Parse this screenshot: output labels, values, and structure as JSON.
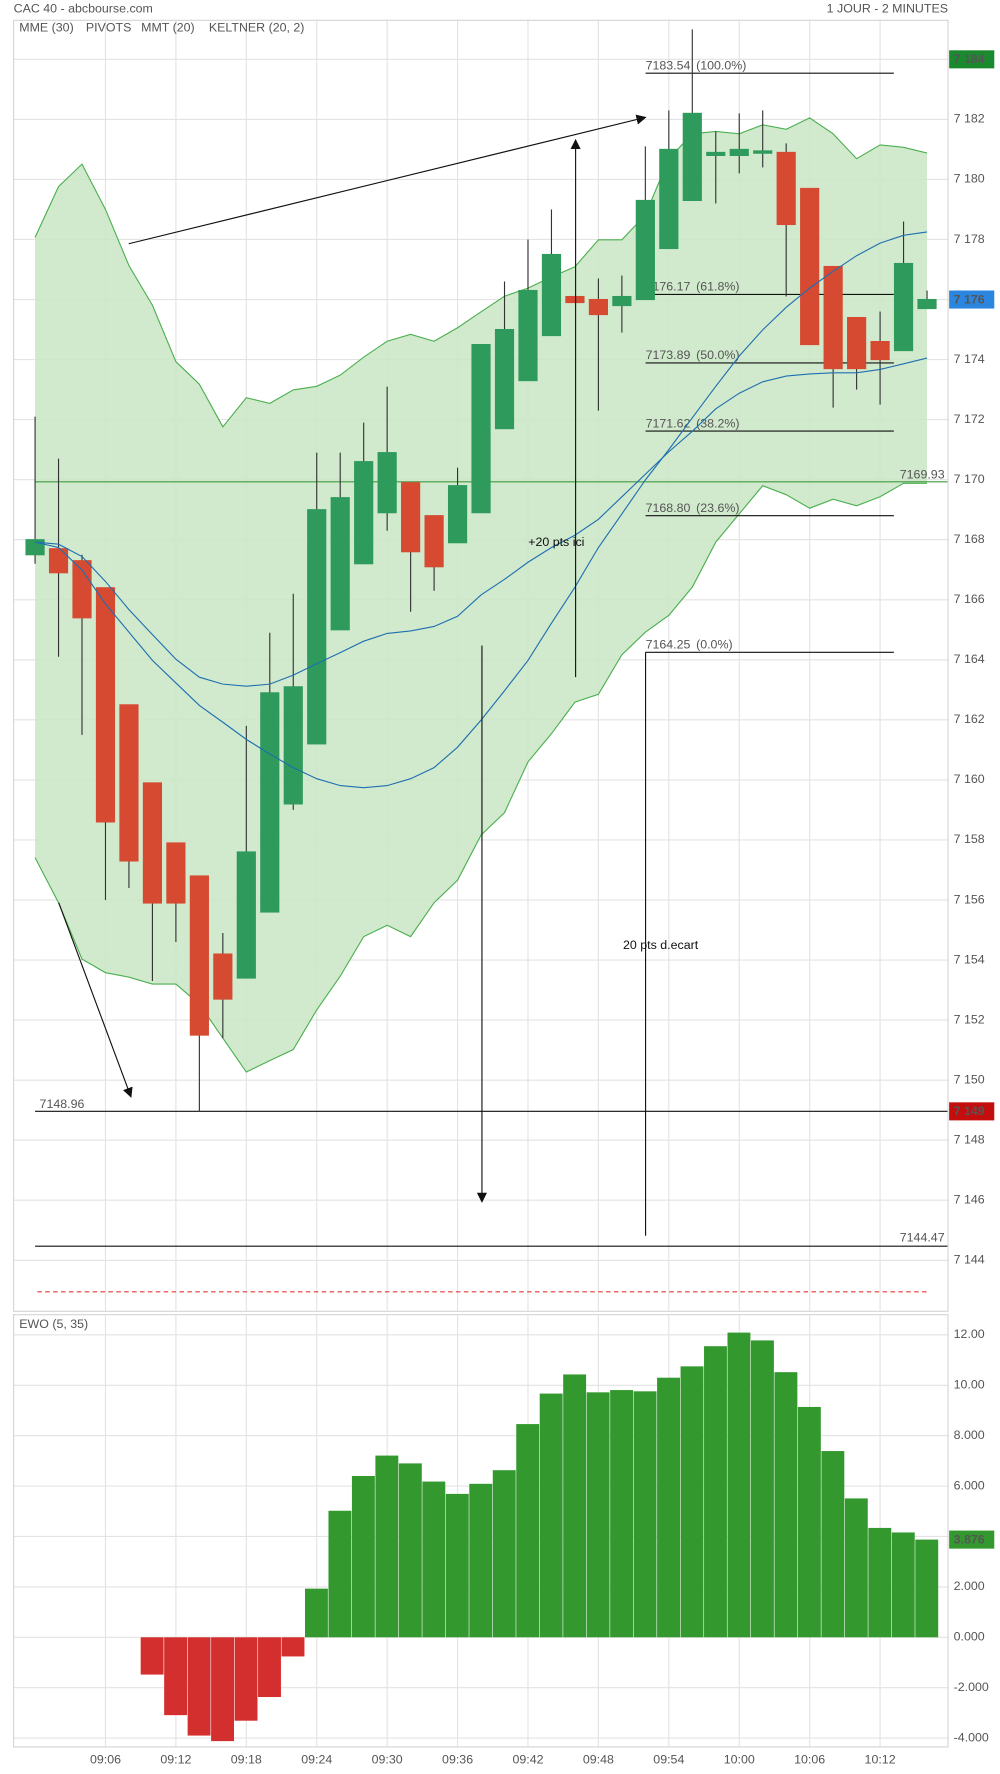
{
  "header": {
    "title": "CAC 40 - abcbourse.com",
    "timeframe": "1 JOUR - 2 MINUTES"
  },
  "annotations": [
    "+20 pts ici",
    "20 pts d.ecart"
  ],
  "chart_data": [
    {
      "type": "candlestick",
      "categories": [
        null,
        null,
        null,
        "09:06",
        null,
        null,
        "09:12",
        null,
        null,
        "09:18",
        null,
        null,
        "09:24",
        null,
        null,
        "09:30",
        null,
        null,
        "09:36",
        null,
        null,
        "09:42",
        null,
        null,
        "09:48",
        null,
        null,
        "09:54",
        null,
        null,
        "10:00",
        null,
        null,
        "10:06",
        null,
        null,
        "10:12",
        null,
        null
      ],
      "open": [
        7167.5,
        7167.7,
        7167.3,
        7166.4,
        7162.5,
        7159.9,
        7157.9,
        7156.8,
        7154.2,
        7153.4,
        7155.6,
        7159.2,
        7161.2,
        7165.0,
        7167.2,
        7168.9,
        7169.9,
        7168.8,
        7167.9,
        7168.9,
        7171.7,
        7173.3,
        7174.8,
        7176.1,
        7176.0,
        7175.8,
        7176.0,
        7177.7,
        7179.3,
        7180.8,
        7180.8,
        7180.9,
        7180.9,
        7179.7,
        7177.1,
        7175.4,
        7174.6,
        7174.3,
        7175.7
      ],
      "high": [
        7172.1,
        7170.7,
        7167.5,
        7166.4,
        7162.5,
        7159.9,
        7157.9,
        7156.8,
        7154.9,
        7161.8,
        7164.9,
        7166.2,
        7170.9,
        7170.9,
        7171.9,
        7173.1,
        7169.9,
        7168.8,
        7170.4,
        7174.5,
        7176.6,
        7178.0,
        7179.0,
        7176.1,
        7176.7,
        7176.8,
        7181.1,
        7182.3,
        7185.0,
        7181.6,
        7182.2,
        7182.3,
        7181.2,
        7179.7,
        7177.1,
        7175.4,
        7175.6,
        7178.6,
        7176.3
      ],
      "low": [
        7167.2,
        7164.1,
        7161.5,
        7156.0,
        7156.4,
        7153.3,
        7154.6,
        7148.96,
        7151.4,
        7153.4,
        7155.6,
        7159.0,
        7161.2,
        7165.0,
        7167.2,
        7168.3,
        7165.6,
        7166.3,
        7167.9,
        7168.9,
        7171.7,
        7173.3,
        7174.8,
        7175.9,
        7172.3,
        7174.9,
        7176.0,
        7177.7,
        7179.3,
        7179.2,
        7180.2,
        7180.4,
        7176.1,
        7174.5,
        7172.4,
        7173.0,
        7172.5,
        7174.3,
        7175.7
      ],
      "close": [
        7168.0,
        7166.9,
        7165.4,
        7158.6,
        7157.3,
        7155.9,
        7155.9,
        7151.5,
        7152.7,
        7157.6,
        7162.9,
        7163.1,
        7169.0,
        7169.4,
        7170.6,
        7170.9,
        7167.6,
        7167.1,
        7169.8,
        7174.5,
        7175.0,
        7176.3,
        7177.5,
        7175.9,
        7175.5,
        7176.1,
        7179.3,
        7181.0,
        7182.2,
        7180.9,
        7181.0,
        7180.95,
        7178.5,
        7174.5,
        7173.7,
        7173.7,
        7174.0,
        7177.2,
        7176.0
      ],
      "up_color": "#2e9a5c",
      "down_color": "#d64a32",
      "series": [
        {
          "name": "MME (30)",
          "color": "#1f6fb0",
          "values": [
            7167.92,
            7167.85,
            7167.44,
            7166.61,
            7165.67,
            7164.84,
            7164.02,
            7163.42,
            7163.19,
            7163.12,
            7163.19,
            7163.49,
            7163.87,
            7164.24,
            7164.62,
            7164.88,
            7164.96,
            7165.11,
            7165.45,
            7166.16,
            7166.68,
            7167.25,
            7167.74,
            7168.15,
            7168.68,
            7169.43,
            7170.18,
            7170.93,
            7171.61,
            7172.36,
            7172.88,
            7173.26,
            7173.45,
            7173.52,
            7173.56,
            7173.56,
            7173.67,
            7173.86,
            7174.05
          ]
        },
        {
          "name": "MMT (20)",
          "color": "#1f6fb0",
          "values": [
            7167.92,
            7167.74,
            7166.99,
            7165.86,
            7164.92,
            7163.98,
            7163.23,
            7162.48,
            7161.92,
            7161.35,
            7160.86,
            7160.41,
            7160.04,
            7159.81,
            7159.74,
            7159.81,
            7160.04,
            7160.41,
            7161.09,
            7161.99,
            7162.97,
            7163.98,
            7165.22,
            7166.42,
            7167.74,
            7168.86,
            7169.99,
            7171.0,
            7172.06,
            7173.11,
            7174.12,
            7174.99,
            7175.74,
            7176.38,
            7176.94,
            7177.46,
            7177.88,
            7178.14,
            7178.25
          ]
        }
      ],
      "pivots": {
        "name": "PIVOTS",
        "label_color": "#555555",
        "color": "#3f9a3f",
        "levels": [
          7169.93
        ]
      },
      "bands": {
        "name": "KELTNER (20, 2)",
        "color": "#4caf50",
        "fill": "#c9e6c4",
        "upper": [
          7178.07,
          7179.76,
          7180.51,
          7179.0,
          7177.13,
          7175.81,
          7173.93,
          7173.18,
          7171.76,
          7172.73,
          7172.54,
          7172.99,
          7173.11,
          7173.48,
          7174.08,
          7174.61,
          7174.84,
          7174.61,
          7175.06,
          7175.59,
          7176.11,
          7176.38,
          7176.75,
          7177.09,
          7177.99,
          7177.99,
          7178.82,
          7180.69,
          7181.52,
          7181.6,
          7181.52,
          7181.82,
          7181.67,
          7182.05,
          7181.52,
          7180.69,
          7181.15,
          7181.07,
          7180.88
        ],
        "lower": [
          7157.41,
          7155.91,
          7154.03,
          7153.58,
          7153.43,
          7153.2,
          7153.2,
          7152.53,
          7151.4,
          7150.27,
          7150.65,
          7151.02,
          7152.34,
          7153.46,
          7154.78,
          7155.16,
          7154.78,
          7155.91,
          7156.66,
          7158.16,
          7158.91,
          7160.6,
          7161.54,
          7162.59,
          7162.85,
          7164.17,
          7164.92,
          7165.48,
          7166.42,
          7167.92,
          7168.86,
          7169.8,
          7169.5,
          7169.05,
          7169.35,
          7169.13,
          7169.43,
          7169.88,
          7169.88
        ]
      },
      "hlines": [
        7148.96,
        7144.47
      ],
      "dashed_line": {
        "value": 7142.95,
        "color": "#e53935"
      },
      "fibonacci": [
        {
          "value": 7183.54,
          "ratio": "(100.0%)"
        },
        {
          "value": 7176.17,
          "ratio": "(61.8%)"
        },
        {
          "value": 7173.89,
          "ratio": "(50.0%)"
        },
        {
          "value": 7171.62,
          "ratio": "(38.2%)"
        },
        {
          "value": 7168.8,
          "label": "7168.80",
          "ratio": "(23.6%)"
        },
        {
          "value": 7164.25,
          "ratio": "(0.0%)"
        }
      ],
      "price_tags": [
        {
          "value": 7184,
          "label": "7 184",
          "color": "#1b8a2e"
        },
        {
          "value": 7176,
          "label": "7 176",
          "color": "#2b86e0"
        },
        {
          "value": 7148.96,
          "label": "7 149",
          "color": "#c40d0d"
        }
      ],
      "ylim": [
        7142.3,
        7185.3
      ],
      "yticks": [
        {
          "value": 7144,
          "label": "7 144"
        },
        {
          "value": 7146,
          "label": "7 146"
        },
        {
          "value": 7148,
          "label": "7 148"
        },
        {
          "value": 7150,
          "label": "7 150"
        },
        {
          "value": 7152,
          "label": "7 152"
        },
        {
          "value": 7154,
          "label": "7 154"
        },
        {
          "value": 7156,
          "label": "7 156"
        },
        {
          "value": 7158,
          "label": "7 158"
        },
        {
          "value": 7160,
          "label": "7 160"
        },
        {
          "value": 7162,
          "label": "7 162"
        },
        {
          "value": 7164,
          "label": "7 164"
        },
        {
          "value": 7166,
          "label": "7 166"
        },
        {
          "value": 7168,
          "label": "7 168"
        },
        {
          "value": 7170,
          "label": "7 170"
        },
        {
          "value": 7172,
          "label": "7 172"
        },
        {
          "value": 7174,
          "label": "7 174"
        },
        {
          "value": 7176,
          "label": "7 176"
        },
        {
          "value": 7178,
          "label": "7 178"
        },
        {
          "value": 7180,
          "label": "7 180"
        },
        {
          "value": 7182,
          "label": "7 182"
        },
        {
          "value": 7184,
          "label": "7 184"
        }
      ],
      "grid": true
    },
    {
      "type": "bar",
      "title": "EWO (5, 35)",
      "title_color": "#2e9a2e",
      "values": [
        null,
        null,
        null,
        null,
        null,
        -1.48,
        -3.09,
        -3.9,
        -4.12,
        -3.31,
        -2.37,
        -0.76,
        1.93,
        5.02,
        6.4,
        7.21,
        6.9,
        6.18,
        5.69,
        6.09,
        6.63,
        8.46,
        9.67,
        10.43,
        9.72,
        9.81,
        9.76,
        10.3,
        10.75,
        11.55,
        12.09,
        11.78,
        10.52,
        9.14,
        7.39,
        5.51,
        4.34,
        4.16,
        3.876
      ],
      "positive_color": "#33992f",
      "negative_color": "#d42f2f",
      "tag_color": "#33992f",
      "ylim": [
        -4.35,
        12.8
      ],
      "yticks": [
        {
          "value": 12,
          "label": "12.00"
        },
        {
          "value": 10,
          "label": "10.00"
        },
        {
          "value": 8,
          "label": "8.000"
        },
        {
          "value": 6,
          "label": "6.000"
        },
        {
          "value": 4,
          "label": "4.000"
        },
        {
          "value": 2,
          "label": "2.000"
        },
        {
          "value": 0,
          "label": "0.000"
        },
        {
          "value": -2,
          "label": "-2.000"
        },
        {
          "value": -4,
          "label": "-4.000"
        }
      ],
      "grid": true
    }
  ]
}
